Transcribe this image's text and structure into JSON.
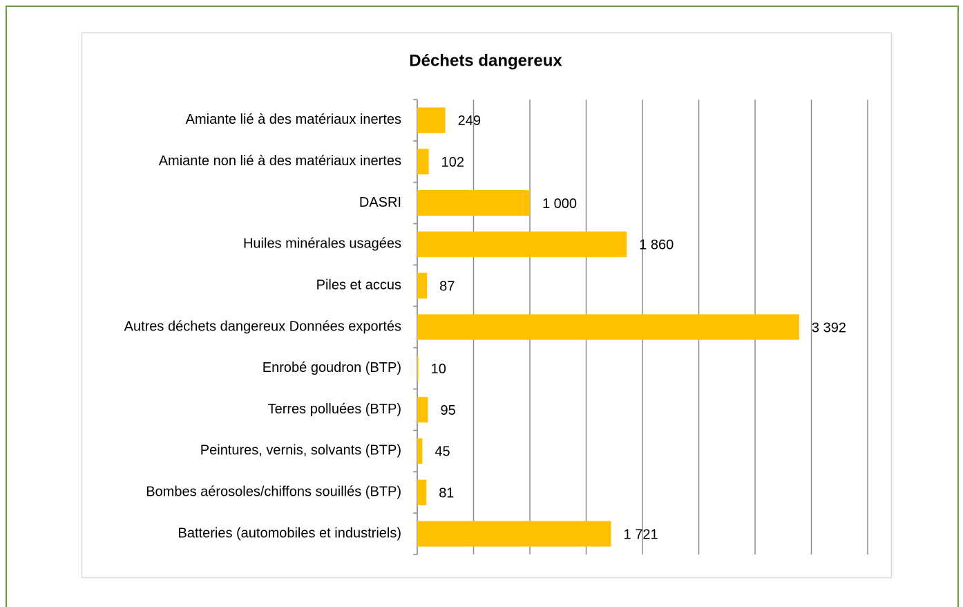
{
  "chart_data": {
    "type": "hbar",
    "title": "Déchets dangereux",
    "categories": [
      "Amiante lié à des matériaux inertes",
      "Amiante non lié à des matériaux inertes",
      "DASRI",
      "Huiles minérales usagées",
      "Piles et accus",
      "Autres déchets dangereux Données exportés",
      "Enrobé goudron (BTP)",
      "Terres polluées (BTP)",
      "Peintures, vernis, solvants (BTP)",
      "Bombes aérosoles/chiffons souillés (BTP)",
      "Batteries (automobiles et industriels)"
    ],
    "values": [
      249,
      102,
      1000,
      1860,
      87,
      3392,
      10,
      95,
      45,
      81,
      1721
    ],
    "value_labels": [
      "249",
      "102",
      "1 000",
      "1 860",
      "87",
      "3 392",
      "10",
      "95",
      "45",
      "81",
      "1 721"
    ],
    "color": "#ffc000",
    "xlim": [
      0,
      4000
    ],
    "xticks": [
      0,
      500,
      1000,
      1500,
      2000,
      2500,
      3000,
      3500,
      4000
    ],
    "grid": true
  }
}
